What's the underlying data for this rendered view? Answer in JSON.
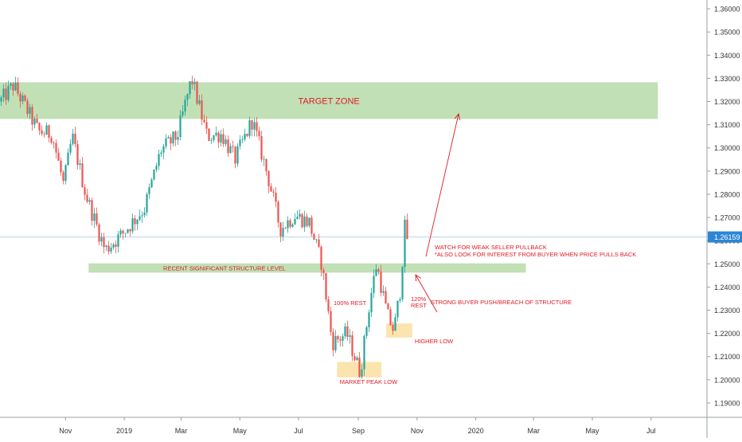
{
  "chart_data": {
    "type": "candlestick",
    "title": "",
    "xlabel": "",
    "ylabel": "",
    "ylim": [
      1.1838,
      1.3638
    ],
    "yticks": [
      "1.36000",
      "1.35000",
      "1.34000",
      "1.33000",
      "1.32000",
      "1.31000",
      "1.30000",
      "1.29000",
      "1.28000",
      "1.27000",
      "1.26000",
      "1.25000",
      "1.24000",
      "1.23000",
      "1.22000",
      "1.21000",
      "1.20000",
      "1.19000"
    ],
    "xticks": [
      "Nov",
      "2019",
      "Mar",
      "May",
      "Jul",
      "Sep",
      "Nov",
      "2020",
      "Mar",
      "May",
      "Jul"
    ],
    "x_range": [
      "2018-08-25",
      "2020-08-28"
    ],
    "grid": false,
    "current_price": {
      "label": "1.26159",
      "value": 1.26159,
      "color": "#2c86d6"
    },
    "colors": {
      "up": "#26a69a",
      "down": "#ef5350",
      "zone_fill": "#9fd08f",
      "annotation": "#e01b24",
      "orange_box": "#f9d98b"
    },
    "candle_path": [
      [
        "2018-08-25",
        1.32
      ],
      [
        "2018-09-08",
        1.327
      ],
      [
        "2018-09-20",
        1.318
      ],
      [
        "2018-10-04",
        1.307
      ],
      [
        "2018-10-18",
        1.306
      ],
      [
        "2018-10-30",
        1.284
      ],
      [
        "2018-11-08",
        1.305
      ],
      [
        "2018-11-22",
        1.28
      ],
      [
        "2018-12-12",
        1.256
      ],
      [
        "2018-12-28",
        1.262
      ],
      [
        "2019-01-22",
        1.274
      ],
      [
        "2019-02-08",
        1.299
      ],
      [
        "2019-02-25",
        1.305
      ],
      [
        "2019-03-12",
        1.33
      ],
      [
        "2019-03-28",
        1.305
      ],
      [
        "2019-04-12",
        1.306
      ],
      [
        "2019-04-26",
        1.295
      ],
      [
        "2019-05-14",
        1.312
      ],
      [
        "2019-05-30",
        1.288
      ],
      [
        "2019-06-12",
        1.265
      ],
      [
        "2019-06-27",
        1.271
      ],
      [
        "2019-07-12",
        1.268
      ],
      [
        "2019-07-25",
        1.25
      ],
      [
        "2019-08-05",
        1.216
      ],
      [
        "2019-08-20",
        1.22
      ],
      [
        "2019-09-03",
        1.203
      ],
      [
        "2019-09-13",
        1.234
      ],
      [
        "2019-09-20",
        1.25
      ],
      [
        "2019-10-01",
        1.228
      ],
      [
        "2019-10-08",
        1.221
      ],
      [
        "2019-10-15",
        1.24
      ],
      [
        "2019-10-19",
        1.266
      ],
      [
        "2019-10-22",
        1.261
      ]
    ],
    "annotations": {
      "target_zone": {
        "label": "TARGET ZONE",
        "y_top": 1.3283,
        "y_bottom": 1.3125,
        "from": "2018-08-25",
        "to": "2020-07-08"
      },
      "structure_level": {
        "label": "RECENT SIGNIFICANT STRUCTURE LEVEL",
        "y_top": 1.2502,
        "y_bottom": 1.2462,
        "from": "2018-11-25",
        "to": "2020-02-22"
      },
      "market_peak_low": {
        "label": "MARKET PEAK LOW",
        "y_top": 1.2077,
        "y_bottom": 1.201,
        "from": "2019-08-10",
        "to": "2019-09-25"
      },
      "higher_low": {
        "label": "HIGHER LOW",
        "y_top": 1.2243,
        "y_bottom": 1.2182,
        "from": "2019-09-30",
        "to": "2019-10-27"
      },
      "rest_100": "100% REST",
      "rest_120": "120%\nREST",
      "strong_buyer": "STRONG BUYER PUSH/BREACH OF STRUCTURE",
      "watch_text": "WATCH FOR WEAK SELLER PULLBACK\n*ALSO LOOK FOR INTEREST FROM BUYER WHEN PRICE PULLS BACK"
    }
  }
}
